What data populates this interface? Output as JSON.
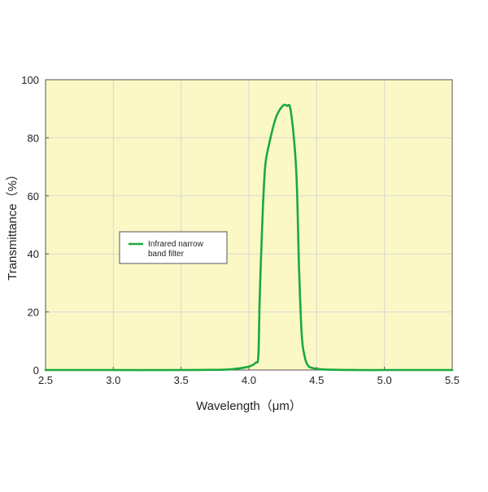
{
  "chart_data": {
    "type": "line",
    "xlabel": "Wavelength（μm）",
    "ylabel": "Transmittance（%）",
    "xlim": [
      2.5,
      5.5
    ],
    "ylim": [
      0,
      100
    ],
    "xticks": [
      "2.5",
      "3.0",
      "3.5",
      "4.0",
      "4.5",
      "5.0",
      "5.5"
    ],
    "yticks": [
      "0",
      "20",
      "40",
      "60",
      "80",
      "100"
    ],
    "grid": true,
    "legend_position": "left",
    "colors": {
      "plot_background": "#fbf8c6",
      "line": "#1aaa3c",
      "grid": "#d8d8d0",
      "axis": "#555555"
    },
    "series": [
      {
        "name": "Infrared narrow band filter",
        "legend_lines": [
          "Infrared narrow",
          "band filter"
        ],
        "x": [
          2.5,
          3.0,
          3.5,
          3.8,
          3.9,
          4.0,
          4.05,
          4.07,
          4.08,
          4.1,
          4.12,
          4.15,
          4.2,
          4.25,
          4.28,
          4.31,
          4.35,
          4.37,
          4.39,
          4.41,
          4.43,
          4.46,
          4.55,
          4.8,
          5.0,
          5.5
        ],
        "y": [
          0,
          0,
          0,
          0.1,
          0.4,
          1.2,
          2.5,
          5,
          25,
          52,
          70,
          78,
          87,
          91,
          91,
          89,
          68,
          35,
          12,
          5,
          2,
          0.8,
          0.2,
          0,
          0,
          0
        ]
      }
    ]
  }
}
